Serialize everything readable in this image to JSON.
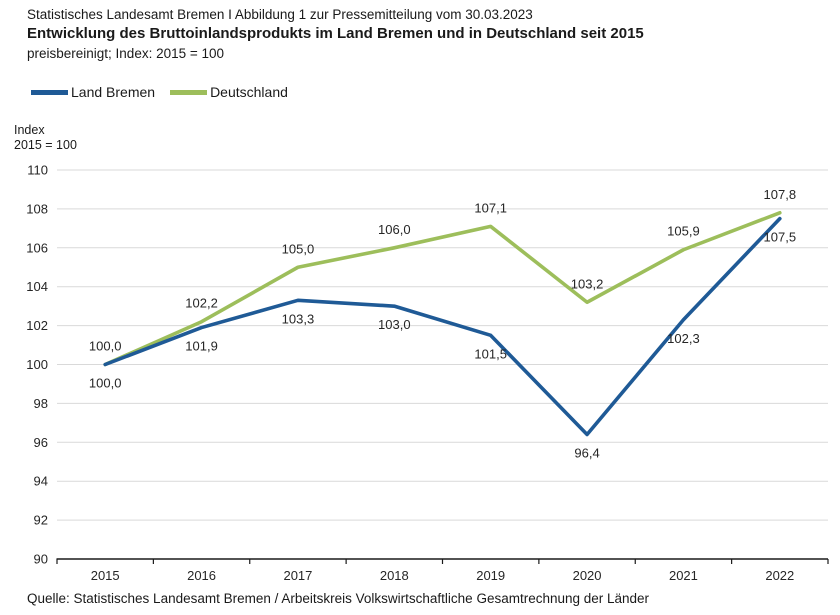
{
  "header": {
    "meta_line": "Statistisches Landesamt Bremen I Abbildung 1 zur Pressemitteilung vom 30.03.2023",
    "title": "Entwicklung des Bruttoinlandsprodukts im Land Bremen und in Deutschland seit 2015",
    "subtitle": "preisbereinigt; Index: 2015 = 100"
  },
  "legend": [
    {
      "label": "Land Bremen",
      "color": "#1F5A96"
    },
    {
      "label": "Deutschland",
      "color": "#9DBE5B"
    }
  ],
  "axis_note": {
    "line1": "Index",
    "line2": "2015 = 100"
  },
  "source": "Quelle: Statistisches Landesamt Bremen / Arbeitskreis Volkswirtschaftliche Gesamtrechnung der Länder",
  "chart_data": {
    "type": "line",
    "title": "Entwicklung des Bruttoinlandsprodukts im Land Bremen und in Deutschland seit 2015",
    "subtitle": "preisbereinigt; Index: 2015 = 100",
    "categories": [
      "2015",
      "2016",
      "2017",
      "2018",
      "2019",
      "2020",
      "2021",
      "2022"
    ],
    "series": [
      {
        "name": "Land Bremen",
        "color": "#1F5A96",
        "values": [
          100.0,
          101.9,
          103.3,
          103.0,
          101.5,
          96.4,
          102.3,
          107.5
        ],
        "labels": [
          "100,0",
          "101,9",
          "103,3",
          "103,0",
          "101,5",
          "96,4",
          "102,3",
          "107,5"
        ]
      },
      {
        "name": "Deutschland",
        "color": "#9DBE5B",
        "values": [
          100.0,
          102.2,
          105.0,
          106.0,
          107.1,
          103.2,
          105.9,
          107.8
        ],
        "labels": [
          "100,0",
          "102,2",
          "105,0",
          "106,0",
          "107,1",
          "103,2",
          "105,9",
          "107,8"
        ]
      }
    ],
    "xlabel": "",
    "ylabel": "Index 2015 = 100",
    "ylim": [
      90,
      110
    ],
    "ytick_step": 2,
    "grid": true,
    "legend_position": "top-left",
    "grid_color": "#D9D9D9",
    "axis_color": "#1a1a1a"
  }
}
